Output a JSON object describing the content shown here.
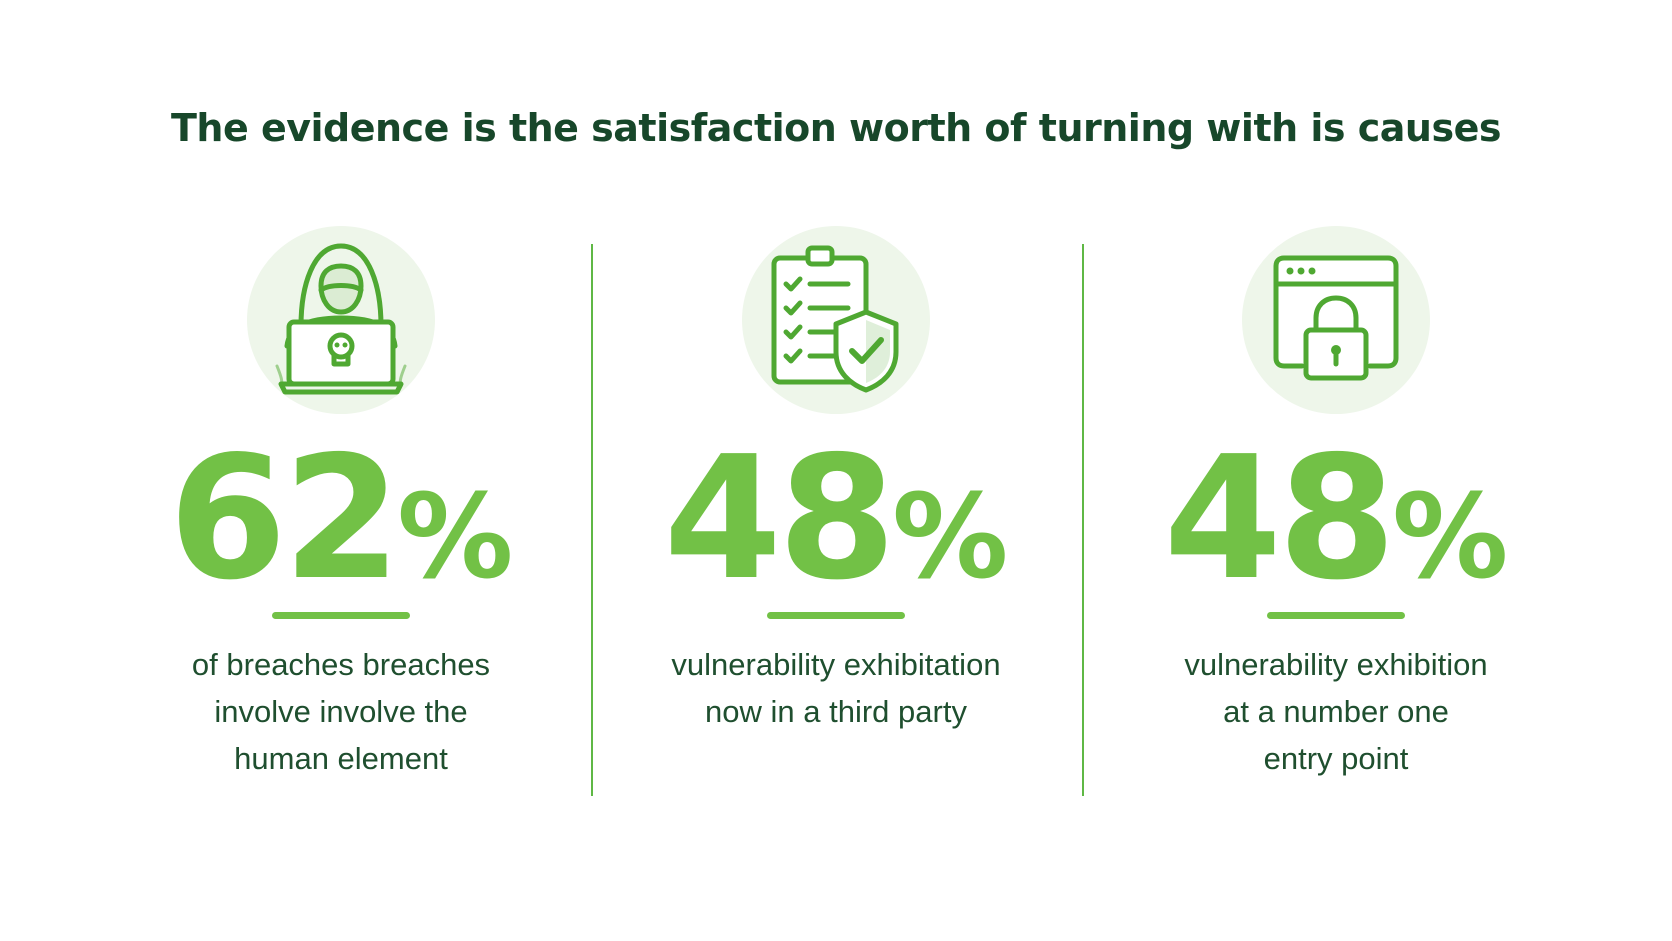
{
  "title": "The evidence is the satisfaction worth of turning with is causes",
  "colors": {
    "title": "#17472a",
    "accent": "#72c146",
    "divider": "#5fb845",
    "icon_stroke": "#4fa832",
    "icon_bg": "#eef6ea",
    "caption": "#1f4f2f"
  },
  "stats": [
    {
      "icon": "hooded-hacker-laptop-icon",
      "number": "62",
      "percent_sign": "%",
      "caption": "of breaches breaches\ninvolve involve the\nhuman element"
    },
    {
      "icon": "clipboard-checklist-shield-icon",
      "number": "48",
      "percent_sign": "%",
      "caption": "vulnerability exhibitation\nnow in a third party"
    },
    {
      "icon": "browser-window-padlock-icon",
      "number": "48",
      "percent_sign": "%",
      "caption": "vulnerability exhibition\nat a number one\nentry point"
    }
  ]
}
